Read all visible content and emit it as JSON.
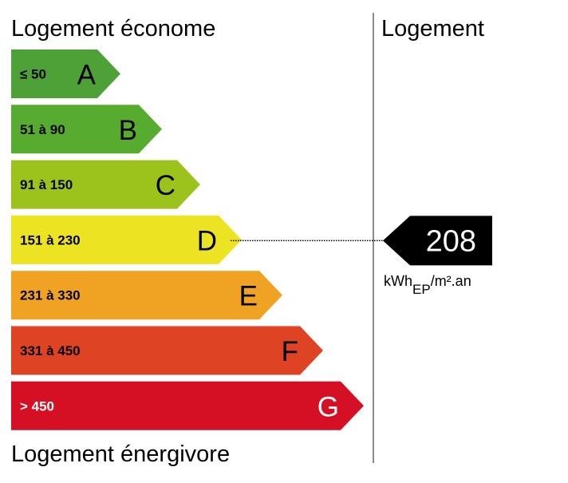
{
  "header": {
    "top_label": "Logement économe",
    "bottom_label": "Logement énergivore",
    "right_label": "Logement"
  },
  "chart_data": {
    "type": "bar",
    "classes": [
      {
        "letter": "A",
        "range": "≤ 50",
        "color": "#4ea136",
        "text_color": "#000000"
      },
      {
        "letter": "B",
        "range": "51 à 90",
        "color": "#57ab2f",
        "text_color": "#000000"
      },
      {
        "letter": "C",
        "range": "91 à 150",
        "color": "#9cc31b",
        "text_color": "#000000"
      },
      {
        "letter": "D",
        "range": "151 à 230",
        "color": "#ece322",
        "text_color": "#000000"
      },
      {
        "letter": "E",
        "range": "231 à 330",
        "color": "#f0a322",
        "text_color": "#000000"
      },
      {
        "letter": "F",
        "range": "331 à 450",
        "color": "#de4324",
        "text_color": "#000000"
      },
      {
        "letter": "G",
        "range": "> 450",
        "color": "#d50f24",
        "text_color": "#ffffff"
      }
    ],
    "value": 208,
    "value_class": "D",
    "unit": {
      "main": "kWh",
      "sub": "EP",
      "suffix": "/m².an"
    }
  }
}
